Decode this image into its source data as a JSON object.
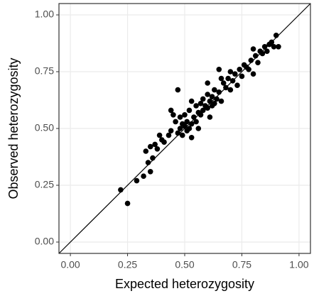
{
  "chart_data": {
    "type": "scatter",
    "x_label": "Expected heterozygosity",
    "y_label": "Observed heterozygosity",
    "xlim": [
      -0.05,
      1.05
    ],
    "ylim": [
      -0.05,
      1.05
    ],
    "xticks": [
      {
        "value": 0,
        "label": "0.00"
      },
      {
        "value": 0.25,
        "label": "0.25"
      },
      {
        "value": 0.5,
        "label": "0.50"
      },
      {
        "value": 0.75,
        "label": "0.75"
      },
      {
        "value": 1,
        "label": "1.00"
      }
    ],
    "yticks": [
      {
        "value": 0,
        "label": "0.00"
      },
      {
        "value": 0.25,
        "label": "0.25"
      },
      {
        "value": 0.5,
        "label": "0.50"
      },
      {
        "value": 0.75,
        "label": "0.75"
      },
      {
        "value": 1,
        "label": "1.00"
      }
    ],
    "grid": true,
    "diagonal": true,
    "color": "#000000",
    "x": [
      0.22,
      0.25,
      0.29,
      0.32,
      0.33,
      0.34,
      0.35,
      0.35,
      0.36,
      0.37,
      0.38,
      0.39,
      0.4,
      0.41,
      0.43,
      0.44,
      0.45,
      0.46,
      0.47,
      0.47,
      0.48,
      0.48,
      0.49,
      0.49,
      0.5,
      0.5,
      0.51,
      0.51,
      0.52,
      0.52,
      0.53,
      0.53,
      0.54,
      0.55,
      0.55,
      0.56,
      0.57,
      0.57,
      0.58,
      0.58,
      0.59,
      0.6,
      0.6,
      0.61,
      0.61,
      0.62,
      0.62,
      0.63,
      0.63,
      0.64,
      0.65,
      0.65,
      0.66,
      0.67,
      0.68,
      0.69,
      0.7,
      0.71,
      0.72,
      0.73,
      0.74,
      0.75,
      0.76,
      0.77,
      0.78,
      0.79,
      0.8,
      0.8,
      0.81,
      0.82,
      0.83,
      0.84,
      0.85,
      0.86,
      0.87,
      0.88,
      0.89,
      0.9,
      0.91,
      0.44,
      0.53,
      0.56,
      0.6,
      0.66,
      0.7
    ],
    "values": [
      0.23,
      0.17,
      0.27,
      0.29,
      0.4,
      0.35,
      0.31,
      0.42,
      0.37,
      0.43,
      0.41,
      0.47,
      0.45,
      0.44,
      0.47,
      0.49,
      0.56,
      0.53,
      0.67,
      0.48,
      0.5,
      0.55,
      0.52,
      0.47,
      0.51,
      0.56,
      0.49,
      0.53,
      0.58,
      0.5,
      0.52,
      0.46,
      0.55,
      0.6,
      0.53,
      0.57,
      0.61,
      0.56,
      0.58,
      0.63,
      0.6,
      0.59,
      0.65,
      0.62,
      0.55,
      0.64,
      0.6,
      0.67,
      0.61,
      0.63,
      0.66,
      0.76,
      0.62,
      0.7,
      0.68,
      0.72,
      0.67,
      0.71,
      0.74,
      0.69,
      0.76,
      0.73,
      0.78,
      0.77,
      0.76,
      0.8,
      0.74,
      0.85,
      0.82,
      0.79,
      0.84,
      0.83,
      0.86,
      0.84,
      0.87,
      0.88,
      0.86,
      0.91,
      0.86,
      0.58,
      0.62,
      0.5,
      0.7,
      0.72,
      0.75
    ]
  }
}
